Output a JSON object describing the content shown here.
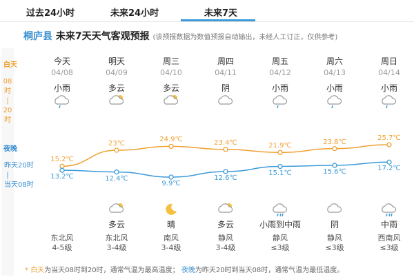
{
  "tabs": [
    "过去24小时",
    "未来24小时",
    "未来7天"
  ],
  "header": {
    "place": "桐庐县",
    "title": "未来7天天气客观预报",
    "note": "(该预报数据为数值预报自动输出，未经人工订正，仅供参考)"
  },
  "side": {
    "day": {
      "name": "白天",
      "from": "08",
      "unit_from": "时",
      "bar": "|",
      "to": "20",
      "unit_to": "时"
    },
    "night": {
      "name": "夜晚",
      "from": "昨天20时",
      "bar": "|",
      "to": "当天08时"
    }
  },
  "days": [
    {
      "day": "今天",
      "date": "04/08",
      "weather": "小雨",
      "night_weather": null,
      "wind": "东北风",
      "level": "4-5级"
    },
    {
      "day": "明天",
      "date": "04/09",
      "weather": "多云",
      "night_weather": "多云",
      "wind": "东北风",
      "level": "3-4级"
    },
    {
      "day": "周三",
      "date": "04/10",
      "weather": "多云",
      "night_weather": "晴",
      "wind": "南风",
      "level": "3-4级"
    },
    {
      "day": "周四",
      "date": "04/11",
      "weather": "阴",
      "night_weather": "多云",
      "wind": "静风",
      "level": "3-4级"
    },
    {
      "day": "周五",
      "date": "04/12",
      "weather": "小雨",
      "night_weather": "小雨到中雨",
      "wind": "静风",
      "level": "≤3级"
    },
    {
      "day": "周六",
      "date": "04/13",
      "weather": "小雨",
      "night_weather": "阴",
      "wind": "静风",
      "level": "≤3级"
    },
    {
      "day": "周日",
      "date": "04/14",
      "weather": "小雨",
      "night_weather": "中雨",
      "wind": "西南风",
      "level": "≤3级"
    }
  ],
  "chart_data": {
    "type": "line",
    "series": [
      {
        "name": "白天",
        "color": "#f0a030",
        "values": [
          15.2,
          23,
          24.9,
          23.4,
          21.9,
          23.8,
          25.7
        ],
        "value_labels": [
          "15.2℃",
          "23℃",
          "24.9℃",
          "23.4℃",
          "21.9℃",
          "23.8℃",
          "25.7℃"
        ]
      },
      {
        "name": "夜晚",
        "color": "#3a9ad9",
        "values": [
          13.2,
          12.4,
          9.9,
          12.6,
          15.1,
          15.6,
          17.2
        ],
        "value_labels": [
          "13.2℃",
          "12.4℃",
          "9.9℃",
          "12.6℃",
          "15.1℃",
          "15.6℃",
          "17.2℃"
        ]
      }
    ]
  },
  "footer": {
    "star": "*",
    "day": "白天",
    "day_text": "为当天08时到20时，通常气温为最高温度；",
    "night": "夜晚",
    "night_text": "为昨天20时到当天08时，通常气温为最低温度。"
  }
}
